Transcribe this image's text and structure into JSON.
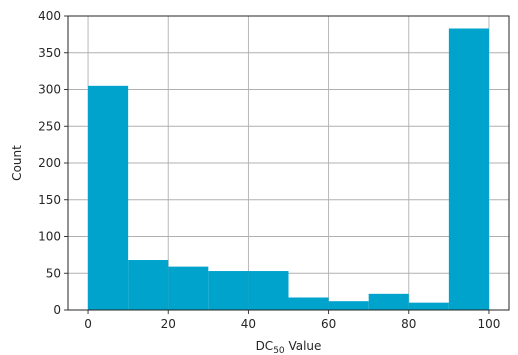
{
  "chart_data": {
    "type": "bar",
    "bins": [
      {
        "range": [
          0,
          10
        ],
        "value": 305
      },
      {
        "range": [
          10,
          20
        ],
        "value": 68
      },
      {
        "range": [
          20,
          30
        ],
        "value": 59
      },
      {
        "range": [
          30,
          40
        ],
        "value": 53
      },
      {
        "range": [
          40,
          50
        ],
        "value": 53
      },
      {
        "range": [
          50,
          60
        ],
        "value": 17
      },
      {
        "range": [
          60,
          70
        ],
        "value": 12
      },
      {
        "range": [
          70,
          80
        ],
        "value": 22
      },
      {
        "range": [
          80,
          90
        ],
        "value": 10
      },
      {
        "range": [
          90,
          100
        ],
        "value": 383
      }
    ],
    "bar_color": "#00a3cc",
    "xlim": [
      -5,
      105
    ],
    "ylim": [
      0,
      400
    ],
    "x_ticks": [
      0,
      20,
      40,
      60,
      80,
      100
    ],
    "y_ticks": [
      0,
      50,
      100,
      150,
      200,
      250,
      300,
      350,
      400
    ],
    "xlabel": {
      "main": "DC",
      "sub": "50",
      "suffix": " Value"
    },
    "ylabel": "Count",
    "grid": true
  }
}
